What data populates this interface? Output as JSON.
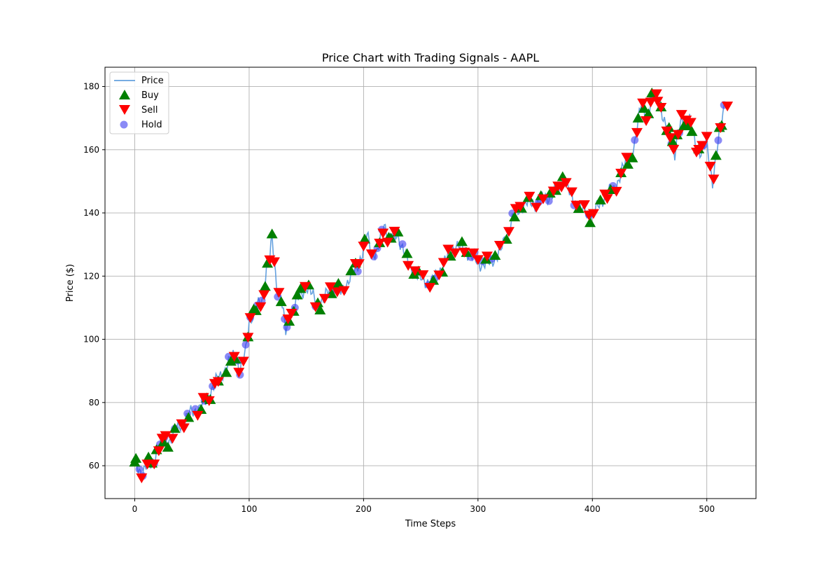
{
  "chart_data": {
    "type": "line",
    "title": "Price Chart with Trading Signals - AAPL",
    "xlabel": "Time Steps",
    "ylabel": "Price ($)",
    "xlim": [
      -26,
      543
    ],
    "ylim": [
      49.6,
      186.1
    ],
    "xticks": [
      0,
      100,
      200,
      300,
      400,
      500
    ],
    "yticks": [
      60,
      80,
      100,
      120,
      140,
      160,
      180
    ],
    "grid": true,
    "legend_position": "upper-left",
    "legend": [
      "Price",
      "Buy",
      "Sell",
      "Hold"
    ],
    "colors": {
      "price": "#4a90d9",
      "buy": "#008000",
      "sell": "#ff0000",
      "hold": "#3c3cf0"
    },
    "price_anchors": [
      [
        0,
        60
      ],
      [
        5,
        58
      ],
      [
        10,
        60
      ],
      [
        15,
        60
      ],
      [
        20,
        66
      ],
      [
        25,
        68
      ],
      [
        30,
        68
      ],
      [
        40,
        73
      ],
      [
        50,
        77
      ],
      [
        60,
        79
      ],
      [
        70,
        86
      ],
      [
        80,
        91
      ],
      [
        88,
        96
      ],
      [
        92,
        90
      ],
      [
        97,
        96
      ],
      [
        100,
        106
      ],
      [
        105,
        109
      ],
      [
        112,
        113
      ],
      [
        115,
        122
      ],
      [
        118,
        125
      ],
      [
        120,
        132
      ],
      [
        124,
        117
      ],
      [
        128,
        113
      ],
      [
        132,
        102
      ],
      [
        136,
        108
      ],
      [
        140,
        111
      ],
      [
        150,
        117
      ],
      [
        160,
        111
      ],
      [
        165,
        112
      ],
      [
        170,
        116
      ],
      [
        180,
        115
      ],
      [
        190,
        120
      ],
      [
        200,
        128
      ],
      [
        203,
        133
      ],
      [
        207,
        128
      ],
      [
        212,
        127
      ],
      [
        218,
        137
      ],
      [
        222,
        132
      ],
      [
        230,
        133
      ],
      [
        240,
        123
      ],
      [
        250,
        119
      ],
      [
        260,
        118
      ],
      [
        270,
        124
      ],
      [
        280,
        130
      ],
      [
        290,
        128
      ],
      [
        300,
        124
      ],
      [
        310,
        124
      ],
      [
        320,
        128
      ],
      [
        330,
        138
      ],
      [
        340,
        143
      ],
      [
        350,
        143
      ],
      [
        360,
        145
      ],
      [
        370,
        147
      ],
      [
        375,
        152
      ],
      [
        380,
        146
      ],
      [
        390,
        141
      ],
      [
        400,
        139
      ],
      [
        410,
        145
      ],
      [
        420,
        148
      ],
      [
        428,
        155
      ],
      [
        433,
        158
      ],
      [
        437,
        161
      ],
      [
        443,
        176
      ],
      [
        448,
        169
      ],
      [
        453,
        177
      ],
      [
        458,
        178
      ],
      [
        462,
        168
      ],
      [
        468,
        166
      ],
      [
        472,
        158
      ],
      [
        478,
        170
      ],
      [
        485,
        169
      ],
      [
        490,
        162
      ],
      [
        495,
        159
      ],
      [
        500,
        162
      ],
      [
        505,
        150
      ],
      [
        510,
        162
      ],
      [
        516,
        176
      ]
    ],
    "signals": {
      "buy": [
        0,
        1,
        12,
        15,
        19,
        25,
        29,
        35,
        47,
        58,
        63,
        66,
        73,
        80,
        84,
        88,
        99,
        104,
        106,
        114,
        116,
        120,
        128,
        135,
        139,
        142,
        145,
        152,
        160,
        162,
        172,
        178,
        189,
        193,
        201,
        214,
        222,
        224,
        230,
        238,
        244,
        248,
        261,
        269,
        276,
        286,
        290,
        307,
        315,
        325,
        332,
        338,
        344,
        355,
        363,
        368,
        374,
        388,
        398,
        407,
        416,
        425,
        431,
        435,
        440,
        445,
        449,
        452,
        460,
        465,
        467,
        470,
        474,
        480,
        483,
        487,
        493,
        508,
        511,
        513
      ],
      "sell": [
        6,
        11,
        17,
        21,
        24,
        27,
        33,
        41,
        43,
        55,
        60,
        65,
        70,
        73,
        87,
        91,
        95,
        99,
        101,
        110,
        113,
        118,
        122,
        126,
        134,
        137,
        149,
        158,
        166,
        171,
        177,
        183,
        193,
        196,
        200,
        207,
        214,
        217,
        221,
        227,
        239,
        245,
        252,
        258,
        266,
        270,
        274,
        280,
        288,
        296,
        300,
        308,
        319,
        327,
        333,
        337,
        345,
        351,
        357,
        366,
        370,
        373,
        377,
        382,
        386,
        393,
        397,
        401,
        411,
        413,
        421,
        425,
        430,
        439,
        444,
        447,
        451,
        456,
        457,
        460,
        465,
        468,
        471,
        475,
        478,
        482,
        486,
        491,
        493,
        496,
        500,
        503,
        506,
        512,
        518
      ],
      "hold": [
        4,
        7,
        17,
        22,
        26,
        35,
        46,
        53,
        61,
        68,
        82,
        90,
        92,
        97,
        101,
        107,
        111,
        125,
        131,
        133,
        140,
        158,
        174,
        195,
        209,
        212,
        216,
        224,
        234,
        257,
        262,
        294,
        297,
        304,
        312,
        330,
        353,
        362,
        368,
        384,
        397,
        418,
        437,
        453,
        469,
        476,
        497,
        510,
        515
      ]
    }
  }
}
